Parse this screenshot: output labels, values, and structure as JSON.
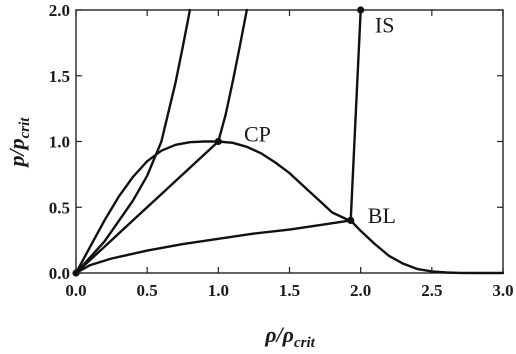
{
  "chart_data": {
    "type": "line",
    "title": "",
    "xlabel": "ρ/ρ",
    "xlabel_sub": "crit",
    "ylabel": "p/p",
    "ylabel_sub": "crit",
    "xlim": [
      0.0,
      3.0
    ],
    "ylim": [
      0.0,
      2.0
    ],
    "xticks": [
      "0.0",
      "0.5",
      "1.0",
      "1.5",
      "2.0",
      "2.5",
      "3.0"
    ],
    "yticks": [
      "0.0",
      "0.5",
      "1.0",
      "1.5",
      "2.0"
    ],
    "grid": false,
    "legend": "none",
    "series": [
      {
        "x": [
          0,
          0.1,
          0.2,
          0.3,
          0.4,
          0.5,
          0.6,
          0.7,
          0.8,
          0.9,
          1.0,
          1.1,
          1.2,
          1.3,
          1.4,
          1.5,
          1.6,
          1.7,
          1.8,
          1.9,
          1.93,
          2.0,
          2.1,
          2.2,
          2.3,
          2.4,
          2.5,
          2.6,
          2.7,
          2.8,
          2.9,
          3.0
        ],
        "y": [
          0,
          0.2,
          0.4,
          0.58,
          0.73,
          0.85,
          0.93,
          0.975,
          0.995,
          1.0,
          1.0,
          0.99,
          0.96,
          0.91,
          0.84,
          0.76,
          0.66,
          0.56,
          0.46,
          0.41,
          0.4,
          0.32,
          0.22,
          0.13,
          0.07,
          0.03,
          0.012,
          0.004,
          0.001,
          0.0,
          0.0,
          0.0
        ]
      },
      {
        "x": [
          0,
          0.2,
          0.4,
          0.5,
          0.6,
          0.7,
          0.75,
          0.8
        ],
        "y": [
          0,
          0.24,
          0.55,
          0.74,
          1.0,
          1.45,
          1.72,
          2.0
        ]
      },
      {
        "x": [
          0,
          0.2,
          0.4,
          0.6,
          0.8,
          1.0,
          1.05,
          1.1,
          1.15,
          1.2
        ],
        "y": [
          0,
          0.2,
          0.4,
          0.6,
          0.8,
          1.0,
          1.2,
          1.45,
          1.72,
          2.0
        ]
      },
      {
        "x": [
          0,
          0.1,
          0.25,
          0.5,
          0.75,
          1.0,
          1.25,
          1.5,
          1.75,
          1.93,
          2.0
        ],
        "y": [
          0,
          0.06,
          0.11,
          0.17,
          0.22,
          0.26,
          0.3,
          0.33,
          0.37,
          0.4,
          2.0
        ]
      }
    ],
    "points": [
      {
        "label": "CP",
        "x": 1.0,
        "y": 1.0
      },
      {
        "label": "BL",
        "x": 1.93,
        "y": 0.4
      },
      {
        "label": "IS",
        "x": 2.0,
        "y": 2.0
      },
      {
        "label": "",
        "x": 0.0,
        "y": 0.0
      }
    ],
    "annotations": [
      {
        "text": "CP",
        "x": 1.18,
        "y": 1.06
      },
      {
        "text": "BL",
        "x": 2.05,
        "y": 0.44
      },
      {
        "text": "IS",
        "x": 2.1,
        "y": 1.89
      }
    ]
  }
}
